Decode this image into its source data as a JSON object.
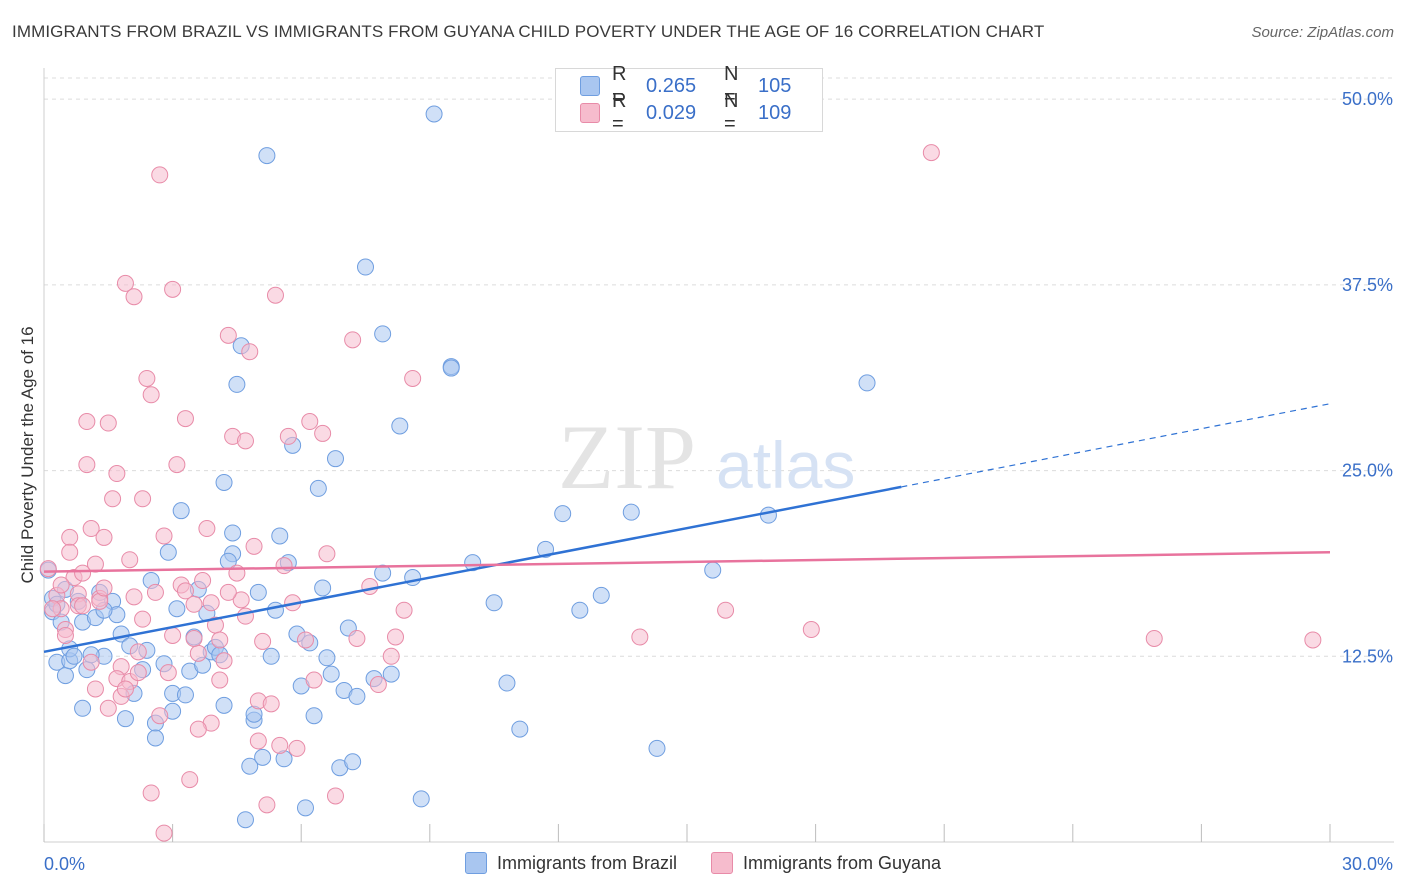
{
  "title": "IMMIGRANTS FROM BRAZIL VS IMMIGRANTS FROM GUYANA CHILD POVERTY UNDER THE AGE OF 16 CORRELATION CHART",
  "source": "Source: ZipAtlas.com",
  "watermark": {
    "zip": "ZIP",
    "atlas": "atlas"
  },
  "legend_top": [
    {
      "r_label": "R =",
      "r_value": "0.265",
      "n_label": "N =",
      "n_value": "105",
      "color": "#a9c6f0",
      "stroke": "#6f9ee0"
    },
    {
      "r_label": "R =",
      "r_value": "0.029",
      "n_label": "N =",
      "n_value": "109",
      "color": "#f6bccd",
      "stroke": "#e88ba8"
    }
  ],
  "chart_data": {
    "type": "scatter",
    "title": "IMMIGRANTS FROM BRAZIL VS IMMIGRANTS FROM GUYANA CHILD POVERTY UNDER THE AGE OF 16 CORRELATION CHART",
    "xlabel": "",
    "ylabel": "Child Poverty Under the Age of 16",
    "xlim": [
      0,
      30
    ],
    "ylim": [
      0,
      52.5
    ],
    "x_tick_labels": [
      "0.0%",
      "30.0%"
    ],
    "y_ticks": [
      12.5,
      25.0,
      37.5,
      50.0
    ],
    "y_tick_labels": [
      "12.5%",
      "25.0%",
      "37.5%",
      "50.0%"
    ],
    "grid": true,
    "legend_position": "bottom",
    "series": [
      {
        "name": "Immigrants from Brazil",
        "color": "#a9c6f0",
        "stroke": "#6f9ee0",
        "line_color": "#2f72d4",
        "trend": {
          "x0": 0,
          "y0": 12.8,
          "x1": 20,
          "y1": 23.9,
          "dash_x1": 30,
          "dash_y1": 29.5
        },
        "points": [
          [
            0.2,
            15.5
          ],
          [
            0.3,
            12.1
          ],
          [
            0.4,
            14.8
          ],
          [
            0.5,
            11.2
          ],
          [
            0.6,
            12.2
          ],
          [
            0.6,
            13.0
          ],
          [
            0.7,
            12.5
          ],
          [
            0.8,
            16.2
          ],
          [
            0.9,
            14.8
          ],
          [
            0.9,
            9.0
          ],
          [
            1.0,
            11.6
          ],
          [
            1.2,
            15.1
          ],
          [
            1.3,
            16.8
          ],
          [
            1.4,
            12.5
          ],
          [
            1.6,
            16.2
          ],
          [
            1.7,
            15.3
          ],
          [
            1.8,
            14.0
          ],
          [
            1.9,
            8.3
          ],
          [
            2.1,
            10.0
          ],
          [
            2.3,
            11.6
          ],
          [
            2.4,
            12.9
          ],
          [
            2.5,
            17.6
          ],
          [
            2.6,
            8.0
          ],
          [
            2.6,
            7.0
          ],
          [
            2.8,
            12.0
          ],
          [
            2.9,
            19.5
          ],
          [
            3.0,
            10.0
          ],
          [
            3.0,
            8.8
          ],
          [
            3.2,
            22.3
          ],
          [
            3.3,
            9.9
          ],
          [
            3.4,
            11.5
          ],
          [
            3.5,
            13.8
          ],
          [
            3.6,
            17.0
          ],
          [
            3.8,
            15.4
          ],
          [
            3.9,
            12.8
          ],
          [
            4.0,
            13.1
          ],
          [
            4.1,
            12.6
          ],
          [
            4.2,
            9.2
          ],
          [
            4.2,
            24.2
          ],
          [
            4.4,
            19.4
          ],
          [
            4.4,
            20.8
          ],
          [
            4.5,
            30.8
          ],
          [
            4.6,
            33.4
          ],
          [
            4.7,
            1.5
          ],
          [
            4.8,
            5.1
          ],
          [
            4.9,
            8.2
          ],
          [
            4.9,
            8.6
          ],
          [
            5.1,
            5.7
          ],
          [
            5.2,
            46.2
          ],
          [
            5.3,
            12.5
          ],
          [
            5.4,
            15.6
          ],
          [
            5.5,
            20.6
          ],
          [
            5.6,
            5.6
          ],
          [
            5.7,
            18.8
          ],
          [
            5.8,
            26.7
          ],
          [
            5.9,
            14.0
          ],
          [
            6.0,
            10.5
          ],
          [
            6.1,
            2.3
          ],
          [
            6.3,
            8.5
          ],
          [
            6.4,
            23.8
          ],
          [
            6.5,
            17.1
          ],
          [
            6.6,
            12.4
          ],
          [
            6.7,
            11.3
          ],
          [
            6.8,
            25.8
          ],
          [
            6.9,
            5.0
          ],
          [
            7.0,
            10.2
          ],
          [
            7.2,
            5.4
          ],
          [
            7.3,
            9.8
          ],
          [
            7.5,
            38.7
          ],
          [
            7.7,
            11.0
          ],
          [
            7.9,
            34.2
          ],
          [
            7.9,
            18.1
          ],
          [
            8.1,
            11.3
          ],
          [
            8.3,
            28.0
          ],
          [
            8.6,
            17.8
          ],
          [
            8.8,
            2.9
          ],
          [
            9.1,
            49.0
          ],
          [
            9.5,
            32.0
          ],
          [
            9.5,
            31.9
          ],
          [
            10.0,
            18.8
          ],
          [
            10.5,
            16.1
          ],
          [
            10.8,
            10.7
          ],
          [
            11.1,
            7.6
          ],
          [
            11.7,
            19.7
          ],
          [
            12.1,
            22.1
          ],
          [
            12.5,
            15.6
          ],
          [
            13.0,
            16.6
          ],
          [
            13.7,
            22.2
          ],
          [
            14.3,
            6.3
          ],
          [
            15.6,
            18.3
          ],
          [
            16.9,
            22.0
          ],
          [
            19.2,
            30.9
          ],
          [
            0.2,
            16.4
          ],
          [
            0.3,
            16.0
          ],
          [
            0.5,
            17.0
          ],
          [
            1.1,
            12.6
          ],
          [
            1.4,
            15.6
          ],
          [
            2.0,
            13.2
          ],
          [
            3.1,
            15.7
          ],
          [
            3.7,
            11.9
          ],
          [
            4.3,
            18.9
          ],
          [
            5.0,
            16.8
          ],
          [
            6.2,
            13.4
          ],
          [
            7.1,
            14.4
          ],
          [
            0.1,
            18.3
          ]
        ]
      },
      {
        "name": "Immigrants from Guyana",
        "color": "#f6bccd",
        "stroke": "#e88ba8",
        "line_color": "#e8739d",
        "trend": {
          "x0": 0,
          "y0": 18.2,
          "x1": 30,
          "y1": 19.5
        },
        "points": [
          [
            0.1,
            18.4
          ],
          [
            0.3,
            16.6
          ],
          [
            0.4,
            15.7
          ],
          [
            0.5,
            14.3
          ],
          [
            0.6,
            20.5
          ],
          [
            0.7,
            17.8
          ],
          [
            0.8,
            16.7
          ],
          [
            0.9,
            18.1
          ],
          [
            1.0,
            25.4
          ],
          [
            1.1,
            21.1
          ],
          [
            1.2,
            10.3
          ],
          [
            1.3,
            16.4
          ],
          [
            1.4,
            20.5
          ],
          [
            1.5,
            9.0
          ],
          [
            1.6,
            23.1
          ],
          [
            1.7,
            24.8
          ],
          [
            1.8,
            11.8
          ],
          [
            1.9,
            37.6
          ],
          [
            2.0,
            19.0
          ],
          [
            2.1,
            36.7
          ],
          [
            2.2,
            12.8
          ],
          [
            2.3,
            23.1
          ],
          [
            2.4,
            31.2
          ],
          [
            2.5,
            3.3
          ],
          [
            2.6,
            16.8
          ],
          [
            2.7,
            44.9
          ],
          [
            2.8,
            20.6
          ],
          [
            2.9,
            11.4
          ],
          [
            3.0,
            37.2
          ],
          [
            3.1,
            25.4
          ],
          [
            3.2,
            17.3
          ],
          [
            3.3,
            28.5
          ],
          [
            3.4,
            4.2
          ],
          [
            3.5,
            16.0
          ],
          [
            3.6,
            12.7
          ],
          [
            3.7,
            17.6
          ],
          [
            3.8,
            21.1
          ],
          [
            3.9,
            8.0
          ],
          [
            4.0,
            14.6
          ],
          [
            4.1,
            13.6
          ],
          [
            4.2,
            12.2
          ],
          [
            4.3,
            34.1
          ],
          [
            4.4,
            27.3
          ],
          [
            4.5,
            18.1
          ],
          [
            4.6,
            16.3
          ],
          [
            4.7,
            27.0
          ],
          [
            4.8,
            33.0
          ],
          [
            4.9,
            19.9
          ],
          [
            5.0,
            9.5
          ],
          [
            5.1,
            13.5
          ],
          [
            5.2,
            2.5
          ],
          [
            5.3,
            9.3
          ],
          [
            5.4,
            36.8
          ],
          [
            5.5,
            6.5
          ],
          [
            5.7,
            27.3
          ],
          [
            5.8,
            16.1
          ],
          [
            5.9,
            6.3
          ],
          [
            6.1,
            13.6
          ],
          [
            6.2,
            28.3
          ],
          [
            6.5,
            27.5
          ],
          [
            6.6,
            19.4
          ],
          [
            6.8,
            3.1
          ],
          [
            7.2,
            33.8
          ],
          [
            7.3,
            13.7
          ],
          [
            7.6,
            17.2
          ],
          [
            7.8,
            10.6
          ],
          [
            8.1,
            12.5
          ],
          [
            8.2,
            13.8
          ],
          [
            8.4,
            15.6
          ],
          [
            8.6,
            31.2
          ],
          [
            13.9,
            13.8
          ],
          [
            15.9,
            15.6
          ],
          [
            17.9,
            14.3
          ],
          [
            20.7,
            46.4
          ],
          [
            25.9,
            13.7
          ],
          [
            29.6,
            13.6
          ],
          [
            0.2,
            15.7
          ],
          [
            0.4,
            17.3
          ],
          [
            0.6,
            19.5
          ],
          [
            0.8,
            15.9
          ],
          [
            1.0,
            28.3
          ],
          [
            1.2,
            18.7
          ],
          [
            1.5,
            28.2
          ],
          [
            1.7,
            11.0
          ],
          [
            2.0,
            10.8
          ],
          [
            2.3,
            15.0
          ],
          [
            2.5,
            30.1
          ],
          [
            2.7,
            8.5
          ],
          [
            3.0,
            13.9
          ],
          [
            3.3,
            16.9
          ],
          [
            3.6,
            7.6
          ],
          [
            3.9,
            16.1
          ],
          [
            4.3,
            16.8
          ],
          [
            4.7,
            15.2
          ],
          [
            5.0,
            6.8
          ],
          [
            1.8,
            9.8
          ],
          [
            2.1,
            16.5
          ],
          [
            1.3,
            16.2
          ],
          [
            0.9,
            15.9
          ],
          [
            0.5,
            13.9
          ],
          [
            1.1,
            12.1
          ],
          [
            1.4,
            17.1
          ],
          [
            1.9,
            10.3
          ],
          [
            2.2,
            11.4
          ],
          [
            2.8,
            0.6
          ],
          [
            3.5,
            13.7
          ],
          [
            4.1,
            10.9
          ],
          [
            5.6,
            18.6
          ],
          [
            6.3,
            10.9
          ]
        ]
      }
    ]
  }
}
